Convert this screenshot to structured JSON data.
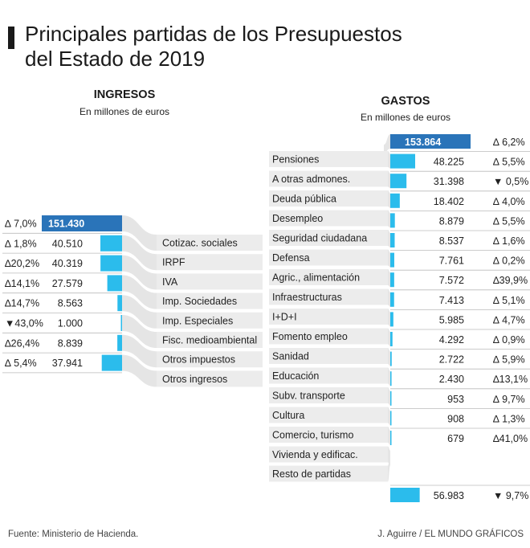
{
  "title_line1": "Principales partidas de los Presupuestos",
  "title_line2": "del Estado de 2019",
  "colors": {
    "dark_bar": "#2a74b9",
    "light_bar": "#2bbcec",
    "band": "#e5e5e5",
    "row_bg": "#ececec"
  },
  "chart_data": [
    {
      "type": "bar",
      "title": "INGRESOS",
      "subtitle": "En millones de euros",
      "total": {
        "value": 151430,
        "label": "151.430",
        "change": "∆ 7,0%"
      },
      "categories": [
        "Cotizac. sociales",
        "IRPF",
        "IVA",
        "Imp. Sociedades",
        "Imp. Especiales",
        "Fisc. medioambiental",
        "Otros impuestos",
        "Otros ingresos"
      ],
      "values": [
        40510,
        40319,
        27579,
        8563,
        1000,
        8839,
        37941,
        0
      ],
      "items": [
        {
          "label": "Cotizac. sociales",
          "value": 40510,
          "value_label": "40.510",
          "change": "∆ 1,8%"
        },
        {
          "label": "IRPF",
          "value": 40319,
          "value_label": "40.319",
          "change": "∆20,2%"
        },
        {
          "label": "IVA",
          "value": 27579,
          "value_label": "27.579",
          "change": "∆14,1%"
        },
        {
          "label": "Imp. Sociedades",
          "value": 8563,
          "value_label": "8.563",
          "change": "∆14,7%"
        },
        {
          "label": "Imp. Especiales",
          "value": 1000,
          "value_label": "1.000",
          "change": "▼43,0%"
        },
        {
          "label": "Fisc. medioambiental",
          "value": 8839,
          "value_label": "8.839",
          "change": "∆26,4%"
        },
        {
          "label": "Otros impuestos",
          "value": 37941,
          "value_label": "37.941",
          "change": "∆ 5,4%"
        },
        {
          "label": "Otros ingresos",
          "value": null,
          "value_label": "",
          "change": ""
        }
      ]
    },
    {
      "type": "bar",
      "title": "GASTOS",
      "subtitle": "En millones de euros",
      "total": {
        "value": 153864,
        "label": "153.864",
        "change": "∆ 6,2%"
      },
      "items": [
        {
          "label": "Pensiones",
          "value": 48225,
          "value_label": "48.225",
          "change": "∆ 5,5%"
        },
        {
          "label": "A otras admones.",
          "value": 31398,
          "value_label": "31.398",
          "change": "▼ 0,5%"
        },
        {
          "label": "Deuda pública",
          "value": 18402,
          "value_label": "18.402",
          "change": "∆ 4,0%"
        },
        {
          "label": "Desempleo",
          "value": 8879,
          "value_label": "8.879",
          "change": "∆ 5,5%"
        },
        {
          "label": "Seguridad ciudadana",
          "value": 8537,
          "value_label": "8.537",
          "change": "∆ 1,6%"
        },
        {
          "label": "Defensa",
          "value": 7761,
          "value_label": "7.761",
          "change": "∆ 0,2%"
        },
        {
          "label": "Agric., alimentación",
          "value": 7572,
          "value_label": "7.572",
          "change": "∆39,9%"
        },
        {
          "label": "Infraestructuras",
          "value": 7413,
          "value_label": "7.413",
          "change": "∆ 5,1%"
        },
        {
          "label": "I+D+I",
          "value": 5985,
          "value_label": "5.985",
          "change": "∆ 4,7%"
        },
        {
          "label": "Fomento empleo",
          "value": 4292,
          "value_label": "4.292",
          "change": "∆ 0,9%"
        },
        {
          "label": "Sanidad",
          "value": 2722,
          "value_label": "2.722",
          "change": "∆ 5,9%"
        },
        {
          "label": "Educación",
          "value": 2430,
          "value_label": "2.430",
          "change": "∆13,1%"
        },
        {
          "label": "Subv. transporte",
          "value": 953,
          "value_label": "953",
          "change": "∆ 9,7%"
        },
        {
          "label": "Cultura",
          "value": 908,
          "value_label": "908",
          "change": "∆ 1,3%"
        },
        {
          "label": "Comercio, turismo",
          "value": 679,
          "value_label": "679",
          "change": "∆41,0%"
        },
        {
          "label": "Vivienda y edificac.",
          "value": null,
          "value_label": "",
          "change": ""
        },
        {
          "label": "Resto de partidas",
          "value": 56983,
          "value_label": "56.983",
          "change": "▼ 9,7%"
        }
      ]
    }
  ],
  "footer_source": "Fuente: Ministerio de Hacienda.",
  "footer_credit": "J. Aguirre / EL MUNDO GRÁFICOS"
}
